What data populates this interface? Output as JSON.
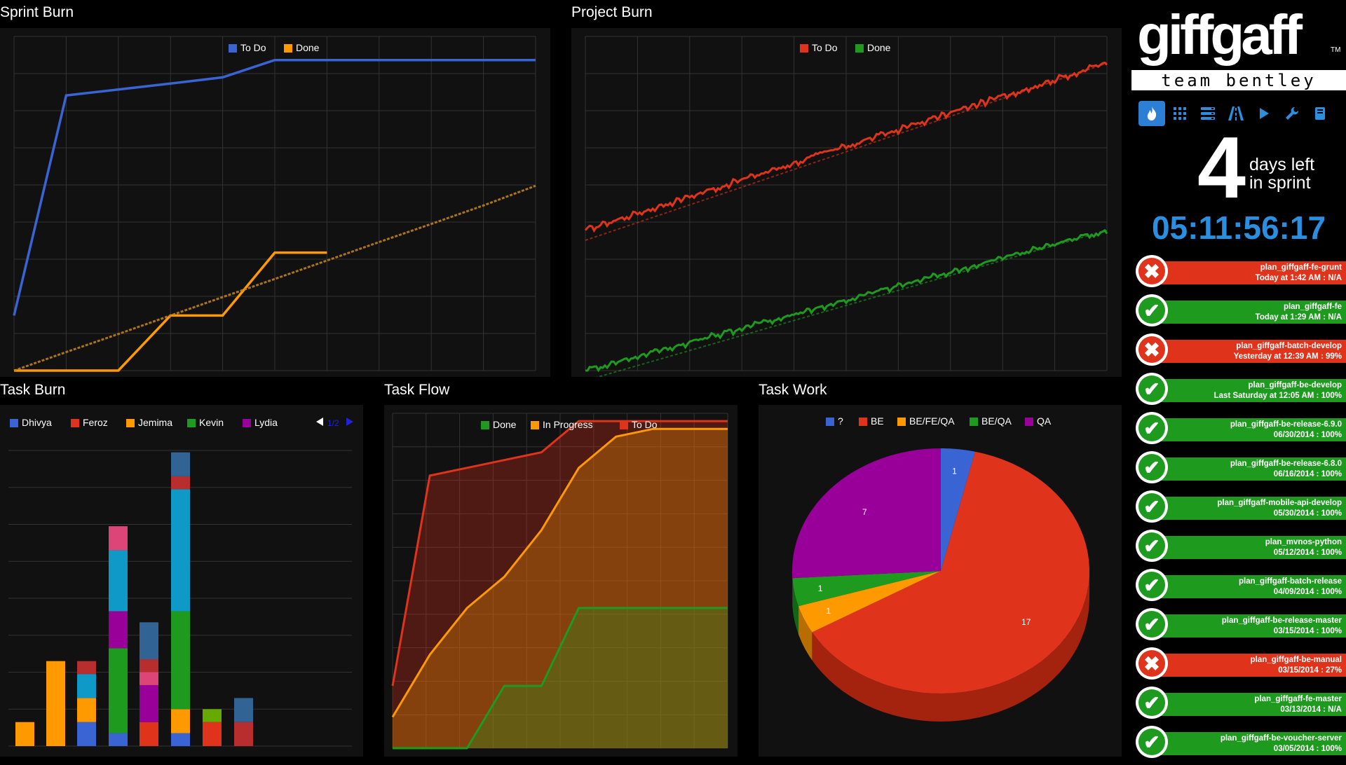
{
  "panels": {
    "sprint_burn": "Sprint Burn",
    "project_burn": "Project Burn",
    "task_burn": "Task Burn",
    "task_flow": "Task Flow",
    "task_work": "Task Work"
  },
  "colors": {
    "todo_blue": "#3a63d4",
    "done_orange": "#ff9900",
    "red": "#e0331c",
    "green": "#1e9a1f",
    "purple": "#990099",
    "cyan": "#0f99c6",
    "pink": "#dd4477",
    "lime": "#66aa00",
    "steel": "#316395",
    "darkred": "#b82e2e",
    "grid": "#333333",
    "countdown": "#2a8fe0"
  },
  "chart_data": [
    {
      "id": "sprint_burn",
      "type": "line",
      "legend": [
        "To Do",
        "Done"
      ],
      "x": [
        0,
        1,
        2,
        3,
        4,
        5,
        6,
        7,
        8,
        9,
        10
      ],
      "series": [
        {
          "name": "To Do",
          "color": "#3a63d4",
          "values": [
            14,
            70,
            71.5,
            73,
            74.6,
            79,
            79,
            79,
            79,
            79,
            79
          ]
        },
        {
          "name": "Done",
          "color": "#ff9900",
          "values": [
            0,
            0,
            0,
            14,
            14,
            30,
            30,
            null,
            null,
            null,
            null
          ]
        },
        {
          "name": "",
          "color": "#c7861f",
          "dashed": true,
          "values": [
            0,
            4.7,
            9.3,
            14,
            18.7,
            23.3,
            28,
            32.7,
            37.3,
            42,
            47
          ]
        }
      ],
      "ylim": [
        0,
        85
      ]
    },
    {
      "id": "project_burn",
      "type": "line",
      "legend": [
        "To Do",
        "Done"
      ],
      "series": [
        {
          "name": "To Do",
          "color": "#e0331c",
          "start": 42,
          "end": 92
        },
        {
          "name": "Done",
          "color": "#1e9a1f",
          "start": 0,
          "end": 42
        }
      ],
      "ylim": [
        0,
        100
      ]
    },
    {
      "id": "task_burn",
      "type": "bar",
      "stacked": true,
      "legend": [
        "Dhivya",
        "Feroz",
        "Jemima",
        "Kevin",
        "Lydia"
      ],
      "pager": "1/2",
      "max": 8,
      "bars": [
        [
          {
            "c": "#ff9900",
            "v": 0.65
          }
        ],
        [
          {
            "c": "#ff9900",
            "v": 2.3
          }
        ],
        [
          {
            "c": "#3a63d4",
            "v": 0.65
          },
          {
            "c": "#ff9900",
            "v": 0.65
          },
          {
            "c": "#0f99c6",
            "v": 0.65
          },
          {
            "c": "#b82e2e",
            "v": 0.35
          }
        ],
        [
          {
            "c": "#3a63d4",
            "v": 0.35
          },
          {
            "c": "#1e9a1f",
            "v": 2.3
          },
          {
            "c": "#990099",
            "v": 1.0
          },
          {
            "c": "#0f99c6",
            "v": 1.65
          },
          {
            "c": "#dd4477",
            "v": 0.65
          }
        ],
        [
          {
            "c": "#e0331c",
            "v": 0.65
          },
          {
            "c": "#990099",
            "v": 1.0
          },
          {
            "c": "#dd4477",
            "v": 0.35
          },
          {
            "c": "#b82e2e",
            "v": 0.35
          },
          {
            "c": "#316395",
            "v": 1.0
          }
        ],
        [
          {
            "c": "#3a63d4",
            "v": 0.35
          },
          {
            "c": "#ff9900",
            "v": 0.65
          },
          {
            "c": "#1e9a1f",
            "v": 2.65
          },
          {
            "c": "#0f99c6",
            "v": 3.3
          },
          {
            "c": "#b82e2e",
            "v": 0.35
          },
          {
            "c": "#316395",
            "v": 0.65
          }
        ],
        [
          {
            "c": "#e0331c",
            "v": 0.65
          },
          {
            "c": "#66aa00",
            "v": 0.35
          }
        ],
        [
          {
            "c": "#b82e2e",
            "v": 0.65
          },
          {
            "c": "#316395",
            "v": 0.65
          }
        ]
      ]
    },
    {
      "id": "task_flow",
      "type": "area",
      "legend": [
        "Done",
        "In Progress",
        "To Do"
      ],
      "x": [
        0,
        1,
        2,
        3,
        4,
        5,
        6,
        7,
        8,
        9
      ],
      "series": [
        {
          "name": "Done",
          "color": "#1e9a1f",
          "values": [
            0,
            0,
            0,
            4,
            4,
            9,
            9,
            9,
            9,
            9
          ]
        },
        {
          "name": "In Progress",
          "color": "#ff9900",
          "values": [
            2,
            6,
            9,
            11,
            14,
            18,
            20,
            20.5,
            20.5,
            20.5
          ]
        },
        {
          "name": "To Do",
          "color": "#e0331c",
          "values": [
            4,
            17.5,
            18,
            18.5,
            19,
            21,
            21,
            21,
            21,
            21
          ]
        }
      ],
      "ylim": [
        0,
        21.5
      ]
    },
    {
      "id": "task_work",
      "type": "pie",
      "legend": [
        "?",
        "BE",
        "BE/FE/QA",
        "BE/QA",
        "QA"
      ],
      "slices": [
        {
          "name": "?",
          "value": 1,
          "color": "#3a63d4",
          "dark": "#25429a"
        },
        {
          "name": "BE",
          "value": 17,
          "color": "#e0331c",
          "dark": "#a3230f"
        },
        {
          "name": "BE/FE/QA",
          "value": 1,
          "color": "#ff9900",
          "dark": "#b86d00"
        },
        {
          "name": "BE/QA",
          "value": 1,
          "color": "#1e9a1f",
          "dark": "#136613"
        },
        {
          "name": "QA",
          "value": 7,
          "color": "#990099",
          "dark": "#660066"
        }
      ]
    }
  ],
  "sidebar": {
    "logo": "giffgaff",
    "logo_tm": "TM",
    "team": "team bentley",
    "icons": [
      "fire-icon",
      "grid-icon",
      "server-icon",
      "road-icon",
      "play-icon",
      "wrench-icon",
      "book-icon"
    ],
    "days_number": "4",
    "days_line1": "days left",
    "days_line2": "in sprint",
    "countdown": "05:11:56:17",
    "builds": [
      {
        "name": "plan_giffgaff-fe-grunt",
        "status": "Today at 1:42 AM : N/A",
        "ok": false
      },
      {
        "name": "plan_giffgaff-fe",
        "status": "Today at 1:29 AM : N/A",
        "ok": true
      },
      {
        "name": "plan_giffgaff-batch-develop",
        "status": "Yesterday at 12:39 AM : 99%",
        "ok": false
      },
      {
        "name": "plan_giffgaff-be-develop",
        "status": "Last Saturday at 12:05 AM : 100%",
        "ok": true
      },
      {
        "name": "plan_giffgaff-be-release-6.9.0",
        "status": "06/30/2014 : 100%",
        "ok": true
      },
      {
        "name": "plan_giffgaff-be-release-6.8.0",
        "status": "06/16/2014 : 100%",
        "ok": true
      },
      {
        "name": "plan_giffgaff-mobile-api-develop",
        "status": "05/30/2014 : 100%",
        "ok": true
      },
      {
        "name": "plan_mvnos-python",
        "status": "05/12/2014 : 100%",
        "ok": true
      },
      {
        "name": "plan_giffgaff-batch-release",
        "status": "04/09/2014 : 100%",
        "ok": true
      },
      {
        "name": "plan_giffgaff-be-release-master",
        "status": "03/15/2014 : 100%",
        "ok": true
      },
      {
        "name": "plan_giffgaff-be-manual",
        "status": "03/15/2014 : 27%",
        "ok": false
      },
      {
        "name": "plan_giffgaff-fe-master",
        "status": "03/13/2014 : N/A",
        "ok": true
      },
      {
        "name": "plan_giffgaff-be-voucher-server",
        "status": "03/05/2014 : 100%",
        "ok": true
      }
    ]
  }
}
